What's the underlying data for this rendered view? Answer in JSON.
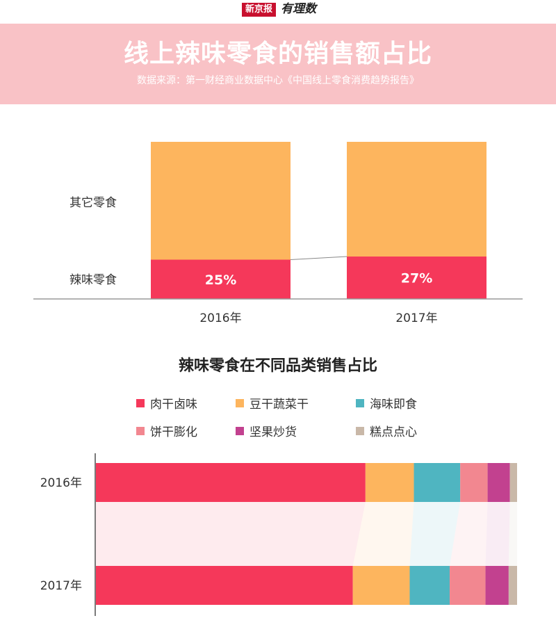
{
  "brand": {
    "name": "新京报",
    "sub": "有理数"
  },
  "header": {
    "title": "线上辣味零食的销售额占比",
    "source": "数据来源：第一财经商业数据中心《中国线上零食消费趋势报告》"
  },
  "colors": {
    "spicy": "#f5385a",
    "other": "#fdb55e",
    "meat": "#f5385a",
    "tofu_veg": "#fdb55e",
    "seafood": "#4fb5c1",
    "biscuit": "#f28790",
    "nuts": "#c2418f",
    "pastry": "#c9b8a8"
  },
  "chart_data": [
    {
      "type": "bar",
      "stacked": true,
      "categories": [
        "2016年",
        "2017年"
      ],
      "row_labels": [
        "其它零食",
        "辣味零食"
      ],
      "series": [
        {
          "name": "辣味零食",
          "values": [
            25,
            27
          ],
          "labels": [
            "25%",
            "27%"
          ]
        },
        {
          "name": "其它零食",
          "values": [
            75,
            73
          ]
        }
      ],
      "ylim": [
        0,
        100
      ]
    },
    {
      "type": "bar",
      "orientation": "horizontal",
      "stacked": true,
      "title": "辣味零食在不同品类销售占比",
      "categories": [
        "2016年",
        "2017年"
      ],
      "legend": [
        "肉干卤味",
        "豆干蔬菜干",
        "海味即食",
        "饼干膨化",
        "坚果炒货",
        "糕点点心"
      ],
      "series": [
        {
          "name": "肉干卤味",
          "values": [
            64,
            61
          ]
        },
        {
          "name": "豆干蔬菜干",
          "values": [
            11.5,
            13.5
          ]
        },
        {
          "name": "海味即食",
          "values": [
            11,
            9.5
          ]
        },
        {
          "name": "饼干膨化",
          "values": [
            6.5,
            8.5
          ]
        },
        {
          "name": "坚果炒货",
          "values": [
            5.3,
            5.5
          ]
        },
        {
          "name": "糕点点心",
          "values": [
            1.7,
            2
          ]
        }
      ],
      "xlim": [
        0,
        100
      ]
    }
  ]
}
